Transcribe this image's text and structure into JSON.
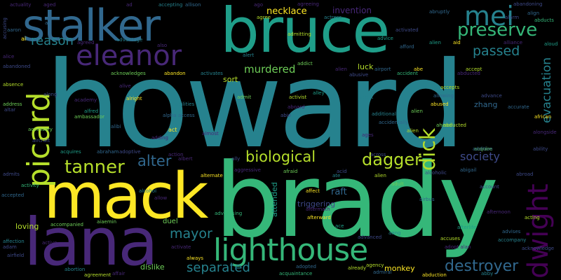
{
  "colors": {
    "background": "#000000",
    "palette": [
      "#440154",
      "#482878",
      "#3e4a89",
      "#31688e",
      "#26828e",
      "#1f9e89",
      "#35b779",
      "#6ece58",
      "#b5de2b",
      "#fde725"
    ]
  },
  "words": [
    {
      "text": "howard",
      "color": "#26828e"
    },
    {
      "text": "brady",
      "color": "#35b779"
    },
    {
      "text": "bruce",
      "color": "#1f9e89"
    },
    {
      "text": "mack",
      "color": "#fde725"
    },
    {
      "text": "lana",
      "color": "#482878"
    },
    {
      "text": "stalker",
      "color": "#31688e"
    },
    {
      "text": "eleanor",
      "color": "#482878"
    },
    {
      "text": "lighthouse",
      "color": "#35b779"
    },
    {
      "text": "mei",
      "color": "#26828e"
    },
    {
      "text": "picard",
      "color": "#b5de2b"
    },
    {
      "text": "dwight",
      "color": "#440154"
    },
    {
      "text": "preserve",
      "color": "#35b779"
    },
    {
      "text": "biological",
      "color": "#b5de2b"
    },
    {
      "text": "dagger",
      "color": "#b5de2b"
    },
    {
      "text": "tanner",
      "color": "#b5de2b"
    },
    {
      "text": "alter",
      "color": "#31688e"
    },
    {
      "text": "dick",
      "color": "#b5de2b"
    },
    {
      "text": "destroyer",
      "color": "#31688e"
    },
    {
      "text": "mayor",
      "color": "#26828e"
    },
    {
      "text": "separated",
      "color": "#26828e"
    },
    {
      "text": "passed",
      "color": "#26828e"
    },
    {
      "text": "reason",
      "color": "#26828e"
    },
    {
      "text": "society",
      "color": "#3e4a89"
    },
    {
      "text": "murdered",
      "color": "#6ece58"
    },
    {
      "text": "evacuation",
      "color": "#26828e"
    },
    {
      "text": "necklace",
      "color": "#fde725"
    },
    {
      "text": "invention",
      "color": "#482878"
    },
    {
      "text": "raft",
      "color": "#31688e"
    },
    {
      "text": "luck",
      "color": "#b5de2b"
    },
    {
      "text": "sort",
      "color": "#b5de2b"
    },
    {
      "text": "zhang",
      "color": "#31688e"
    },
    {
      "text": "loving",
      "color": "#b5de2b"
    },
    {
      "text": "dislike",
      "color": "#6ece58"
    },
    {
      "text": "monkey",
      "color": "#fde725"
    },
    {
      "text": "triggering",
      "color": "#3e4a89"
    },
    {
      "text": "attended",
      "color": "#1f9e89"
    },
    {
      "text": "duel",
      "color": "#6ece58"
    },
    {
      "text": "alien",
      "color": "#b5de2b"
    },
    {
      "text": "actuality",
      "color": "#482878"
    },
    {
      "text": "aged",
      "color": "#482878"
    },
    {
      "text": "accepting",
      "color": "#26828e"
    },
    {
      "text": "allison",
      "color": "#31688e"
    },
    {
      "text": "agreeing",
      "color": "#482878"
    },
    {
      "text": "abruptly",
      "color": "#31688e"
    },
    {
      "text": "abandoning",
      "color": "#3e4a89"
    },
    {
      "text": "abducts",
      "color": "#35b779"
    },
    {
      "text": "align",
      "color": "#31688e"
    },
    {
      "text": "accusing",
      "color": "#3e4a89"
    },
    {
      "text": "aaron",
      "color": "#31688e"
    },
    {
      "text": "ai",
      "color": "#fde725"
    },
    {
      "text": "alice",
      "color": "#482878"
    },
    {
      "text": "abandoned",
      "color": "#3e4a89"
    },
    {
      "text": "absence",
      "color": "#b5de2b"
    },
    {
      "text": "address",
      "color": "#6ece58"
    },
    {
      "text": "altar",
      "color": "#3e4a89"
    },
    {
      "text": "advantage",
      "color": "#26828e"
    },
    {
      "text": "agreed",
      "color": "#482878"
    },
    {
      "text": "alliance",
      "color": "#482878"
    },
    {
      "text": "acknowledges",
      "color": "#6ece58"
    },
    {
      "text": "abandon",
      "color": "#fde725"
    },
    {
      "text": "activates",
      "color": "#26828e"
    },
    {
      "text": "academy",
      "color": "#482878"
    },
    {
      "text": "alfred",
      "color": "#1f9e89"
    },
    {
      "text": "ambassador",
      "color": "#6ece58"
    },
    {
      "text": "alpha",
      "color": "#31688e"
    },
    {
      "text": "act",
      "color": "#fde725"
    },
    {
      "text": "almost",
      "color": "#482878"
    },
    {
      "text": "abie",
      "color": "#3e4a89"
    },
    {
      "text": "abraham",
      "color": "#31688e"
    },
    {
      "text": "adoptive",
      "color": "#3e4a89"
    },
    {
      "text": "acquires",
      "color": "#1f9e89"
    },
    {
      "text": "admits",
      "color": "#3e4a89"
    },
    {
      "text": "activity",
      "color": "#35b779"
    },
    {
      "text": "accepted",
      "color": "#31688e"
    },
    {
      "text": "accompanied",
      "color": "#6ece58"
    },
    {
      "text": "aiaemin",
      "color": "#6ece58"
    },
    {
      "text": "affection",
      "color": "#26828e"
    },
    {
      "text": "adam",
      "color": "#3e4a89"
    },
    {
      "text": "airfield",
      "color": "#3e4a89"
    },
    {
      "text": "abortion",
      "color": "#26828e"
    },
    {
      "text": "agreement",
      "color": "#b5de2b"
    },
    {
      "text": "affair",
      "color": "#482878"
    },
    {
      "text": "acquaintance",
      "color": "#35b779"
    },
    {
      "text": "adopted",
      "color": "#31688e"
    },
    {
      "text": "afterward",
      "color": "#fde725"
    },
    {
      "text": "advanced",
      "color": "#3e4a89"
    },
    {
      "text": "agency",
      "color": "#b5de2b"
    },
    {
      "text": "admiral",
      "color": "#31688e"
    },
    {
      "text": "abduction",
      "color": "#fde725"
    },
    {
      "text": "accuses",
      "color": "#b5de2b"
    },
    {
      "text": "accompany",
      "color": "#26828e"
    },
    {
      "text": "alongside",
      "color": "#482878"
    },
    {
      "text": "ability",
      "color": "#3e4a89"
    },
    {
      "text": "african",
      "color": "#fde725"
    },
    {
      "text": "advance",
      "color": "#3e4a89"
    },
    {
      "text": "accept",
      "color": "#b5de2b"
    },
    {
      "text": "acquire",
      "color": "#6ece58"
    },
    {
      "text": "accident",
      "color": "#35b779"
    },
    {
      "text": "abused",
      "color": "#fde725"
    },
    {
      "text": "accepts",
      "color": "#b5de2b"
    },
    {
      "text": "allowing",
      "color": "#31688e"
    },
    {
      "text": "agent",
      "color": "#26828e"
    },
    {
      "text": "activist",
      "color": "#b5de2b"
    },
    {
      "text": "aboard",
      "color": "#482878"
    },
    {
      "text": "alley",
      "color": "#1f9e89"
    },
    {
      "text": "addict",
      "color": "#6ece58"
    },
    {
      "text": "afford",
      "color": "#31688e"
    },
    {
      "text": "admitting",
      "color": "#b5de2b"
    },
    {
      "text": "activated",
      "color": "#3e4a89"
    },
    {
      "text": "advice",
      "color": "#1f9e89"
    },
    {
      "text": "airport",
      "color": "#31688e"
    },
    {
      "text": "abusive",
      "color": "#3e4a89"
    },
    {
      "text": "alive",
      "color": "#482878"
    },
    {
      "text": "allow",
      "color": "#482878"
    },
    {
      "text": "alternate",
      "color": "#fde725"
    },
    {
      "text": "aggressive",
      "color": "#482878"
    },
    {
      "text": "afraid",
      "color": "#6ece58"
    },
    {
      "text": "affect",
      "color": "#fde725"
    },
    {
      "text": "aftermath",
      "color": "#482878"
    },
    {
      "text": "adult",
      "color": "#6ece58"
    },
    {
      "text": "already",
      "color": "#b5de2b"
    },
    {
      "text": "always",
      "color": "#fde725"
    },
    {
      "text": "activate",
      "color": "#482878"
    },
    {
      "text": "active",
      "color": "#482878"
    },
    {
      "text": "account",
      "color": "#3e4a89"
    },
    {
      "text": "acting",
      "color": "#b5de2b"
    },
    {
      "text": "advises",
      "color": "#31688e"
    },
    {
      "text": "afterlife",
      "color": "#1f9e89"
    },
    {
      "text": "adopt alan",
      "color": "#482878"
    },
    {
      "text": "ally",
      "color": "#3e4a89"
    },
    {
      "text": "action",
      "color": "#482878"
    },
    {
      "text": "acid",
      "color": "#3e4a89"
    },
    {
      "text": "across",
      "color": "#3e4a89"
    },
    {
      "text": "aang",
      "color": "#26828e"
    },
    {
      "text": "albert",
      "color": "#482878"
    },
    {
      "text": "ahead",
      "color": "#6ece58"
    },
    {
      "text": "alcoholic",
      "color": "#3e4a89"
    },
    {
      "text": "abigail",
      "color": "#31688e"
    },
    {
      "text": "abducted",
      "color": "#482878"
    },
    {
      "text": "addition",
      "color": "#31688e"
    },
    {
      "text": "ago",
      "color": "#482878"
    },
    {
      "text": "agree",
      "color": "#b5de2b"
    },
    {
      "text": "actress",
      "color": "#26828e"
    },
    {
      "text": "abe",
      "color": "#fde725"
    },
    {
      "text": "also",
      "color": "#482878"
    },
    {
      "text": "ad",
      "color": "#482878"
    },
    {
      "text": "an",
      "color": "#31688e"
    },
    {
      "text": "along",
      "color": "#3e4a89"
    },
    {
      "text": "admit",
      "color": "#6ece58"
    },
    {
      "text": "alert",
      "color": "#26828e"
    },
    {
      "text": "abilities",
      "color": "#26828e"
    },
    {
      "text": "access",
      "color": "#31688e"
    },
    {
      "text": "alien",
      "color": "#482878"
    },
    {
      "text": "alien",
      "color": "#6ece58"
    },
    {
      "text": "alien",
      "color": "#b5de2b"
    },
    {
      "text": "airbus",
      "color": "#31688e"
    },
    {
      "text": "abby",
      "color": "#26828e"
    },
    {
      "text": "aid",
      "color": "#fde725"
    },
    {
      "text": "abroad",
      "color": "#3e4a89"
    },
    {
      "text": "ate",
      "color": "#26828e"
    },
    {
      "text": "alien",
      "color": "#1f9e89"
    },
    {
      "text": "aloud",
      "color": "#1f9e89"
    },
    {
      "text": "accurate",
      "color": "#31688e"
    },
    {
      "text": "acknowledge",
      "color": "#3e4a89"
    },
    {
      "text": "alarm",
      "color": "#3e4a89"
    },
    {
      "text": "abducted",
      "color": "#b5de2b"
    },
    {
      "text": "ages",
      "color": "#482878"
    },
    {
      "text": "additional",
      "color": "#26828e"
    },
    {
      "text": "accidentally",
      "color": "#31688e"
    },
    {
      "text": "accessory",
      "color": "#6ece58"
    },
    {
      "text": "aircraft",
      "color": "#3e4a89"
    },
    {
      "text": "alibi",
      "color": "#31688e"
    },
    {
      "text": "alright",
      "color": "#fde725"
    },
    {
      "text": "adding",
      "color": "#482878"
    },
    {
      "text": "alcohol",
      "color": "#26828e"
    },
    {
      "text": "advertising",
      "color": "#35b779"
    },
    {
      "text": "ace",
      "color": "#1f9e89"
    },
    {
      "text": "afternoon",
      "color": "#482878"
    }
  ]
}
